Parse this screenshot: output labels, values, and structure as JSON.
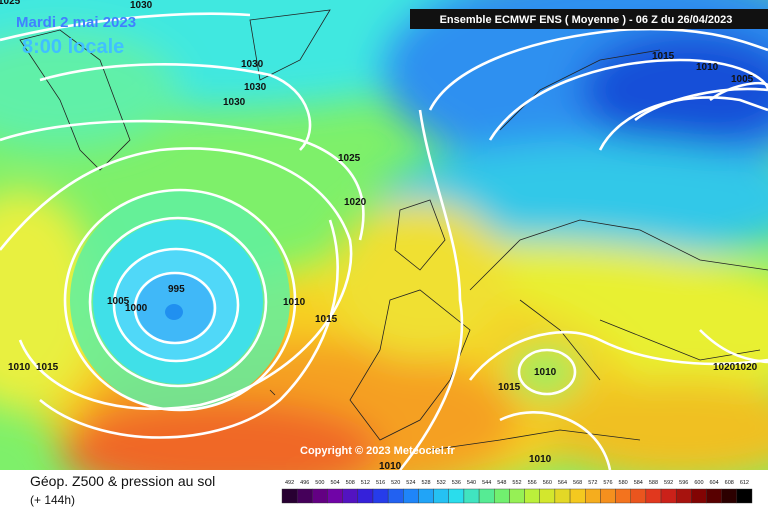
{
  "header": {
    "date": "Mardi 2 mai 2023",
    "time": "8:00 locale",
    "run": "Ensemble ECMWF ENS  ( Moyenne )  -  06 Z du 26/04/2023"
  },
  "map": {
    "isobar_labels": [
      "1030",
      "1025",
      "1030",
      "1030",
      "1030",
      "1025",
      "1020",
      "1015",
      "1010",
      "1005",
      "995",
      "1005",
      "1000",
      "1010",
      "1015",
      "1010",
      "1015",
      "1010",
      "1015",
      "1020",
      "1020",
      "1010",
      "1010"
    ],
    "copyright": "Copyright © 2023 Meteociel.fr"
  },
  "footer": {
    "title": "Géop. Z500 & pression au sol",
    "lead": "(+ 144h)",
    "scale": [
      "492",
      "496",
      "500",
      "504",
      "508",
      "512",
      "516",
      "520",
      "524",
      "528",
      "532",
      "536",
      "540",
      "544",
      "548",
      "552",
      "556",
      "560",
      "564",
      "568",
      "572",
      "576",
      "580",
      "584",
      "588",
      "592",
      "596",
      "600",
      "604",
      "608",
      "612"
    ]
  }
}
